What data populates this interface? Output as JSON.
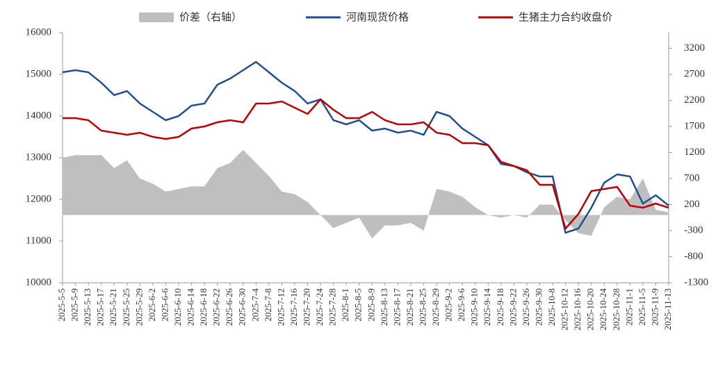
{
  "chart_data": {
    "type": "line",
    "categories": [
      "2025-5-5",
      "2025-5-9",
      "2025-5-13",
      "2025-5-17",
      "2025-5-21",
      "2025-5-25",
      "2025-5-29",
      "2025-6-2",
      "2025-6-6",
      "2025-6-10",
      "2025-6-14",
      "2025-6-18",
      "2025-6-22",
      "2025-6-26",
      "2025-6-30",
      "2025-7-4",
      "2025-7-8",
      "2025-7-12",
      "2025-7-16",
      "2025-7-20",
      "2025-7-24",
      "2025-7-28",
      "2025-8-1",
      "2025-8-5",
      "2025-8-9",
      "2025-8-13",
      "2025-8-17",
      "2025-8-21",
      "2025-8-25",
      "2025-8-29",
      "2025-9-2",
      "2025-9-6",
      "2025-9-10",
      "2025-9-14",
      "2025-9-18",
      "2025-9-22",
      "2025-9-26",
      "2025-9-30",
      "2025-10-8",
      "2025-10-12",
      "2025-10-16",
      "2025-10-20",
      "2025-10-24",
      "2025-10-28",
      "2025-11-1",
      "2025-11-5",
      "2025-11-9",
      "2025-11-13"
    ],
    "series": [
      {
        "name": "价差（右轴）",
        "color": "#bfbfbf",
        "axis": "y2",
        "kind": "area",
        "values": [
          1100,
          1150,
          1150,
          1150,
          900,
          1050,
          700,
          600,
          450,
          500,
          550,
          550,
          900,
          1000,
          1250,
          1000,
          750,
          450,
          400,
          250,
          0,
          -250,
          -150,
          -50,
          -450,
          -200,
          -200,
          -150,
          -300,
          500,
          450,
          350,
          150,
          0,
          -50,
          0,
          -50,
          200,
          200,
          -100,
          -350,
          -400,
          150,
          350,
          300,
          700,
          100,
          50
        ]
      },
      {
        "name": "河南现货价格",
        "color": "#1f4e96",
        "values": [
          15050,
          15100,
          15050,
          14800,
          14500,
          14600,
          14300,
          14100,
          13900,
          14000,
          14250,
          14300,
          14750,
          14900,
          15100,
          15300,
          15050,
          14800,
          14600,
          14300,
          14400,
          13900,
          13800,
          13900,
          13650,
          13700,
          13600,
          13650,
          13550,
          14100,
          14000,
          13700,
          13500,
          13300,
          12850,
          12800,
          12650,
          12550,
          12550,
          11200,
          11300,
          11800,
          12400,
          12600,
          12550,
          11900,
          12100,
          11850
        ]
      },
      {
        "name": "生猪主力合约收盘价",
        "color": "#c00000",
        "values": [
          13950,
          13950,
          13900,
          13650,
          13600,
          13550,
          13600,
          13500,
          13450,
          13500,
          13700,
          13750,
          13850,
          13900,
          13850,
          14300,
          14300,
          14350,
          14200,
          14050,
          14400,
          14150,
          13950,
          13950,
          14100,
          13900,
          13800,
          13800,
          13850,
          13600,
          13550,
          13350,
          13350,
          13300,
          12900,
          12800,
          12700,
          12350,
          12350,
          11300,
          11650,
          12200,
          12250,
          12300,
          11850,
          11800,
          11900,
          11800
        ]
      }
    ],
    "ylim": [
      10000,
      16000
    ],
    "yticks": [
      10000,
      11000,
      12000,
      13000,
      14000,
      15000,
      16000
    ],
    "y2lim": [
      -1300,
      3500
    ],
    "y2ticks": [
      -1300,
      -800,
      -300,
      200,
      700,
      1200,
      1700,
      2200,
      2700,
      3200
    ]
  }
}
